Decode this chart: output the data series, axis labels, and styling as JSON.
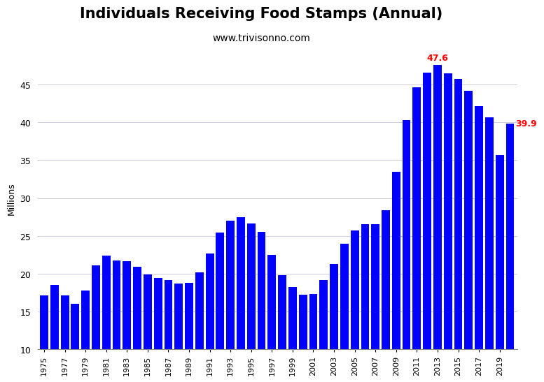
{
  "title": "Individuals Receiving Food Stamps (Annual)",
  "subtitle": "www.trivisonno.com",
  "ylabel": "Millions",
  "bar_color": "#0000ff",
  "background_color": "#ffffff",
  "title_fontsize": 15,
  "subtitle_fontsize": 10,
  "ylabel_fontsize": 9,
  "ylim": [
    10,
    50
  ],
  "yticks": [
    10,
    15,
    20,
    25,
    30,
    35,
    40,
    45
  ],
  "years": [
    1975,
    1976,
    1977,
    1978,
    1979,
    1980,
    1981,
    1982,
    1983,
    1984,
    1985,
    1986,
    1987,
    1988,
    1989,
    1990,
    1991,
    1992,
    1993,
    1994,
    1995,
    1996,
    1997,
    1998,
    1999,
    2000,
    2001,
    2002,
    2003,
    2004,
    2005,
    2006,
    2007,
    2008,
    2009,
    2010,
    2011,
    2012,
    2013,
    2014,
    2015,
    2016,
    2017,
    2018,
    2019,
    2020
  ],
  "values": [
    17.1,
    18.5,
    17.1,
    16.0,
    17.7,
    21.1,
    22.4,
    21.7,
    21.6,
    20.9,
    19.9,
    19.4,
    19.1,
    18.7,
    18.8,
    20.1,
    22.6,
    25.4,
    27.0,
    27.5,
    26.6,
    25.5,
    22.5,
    19.8,
    18.2,
    17.2,
    17.3,
    19.1,
    21.3,
    23.9,
    25.7,
    26.5,
    26.5,
    28.4,
    33.5,
    40.3,
    44.7,
    46.6,
    47.6,
    46.5,
    45.8,
    44.2,
    42.2,
    40.7,
    35.7,
    39.9
  ],
  "annotate_max_year": 2013,
  "annotate_max_value": 47.6,
  "annotate_last_year": 2020,
  "annotate_last_value": 39.9,
  "annotation_color": "#ff0000",
  "annotation_fontsize": 9,
  "grid_color": "#ccccdd",
  "tick_fontsize": 9,
  "xtick_fontsize": 8
}
